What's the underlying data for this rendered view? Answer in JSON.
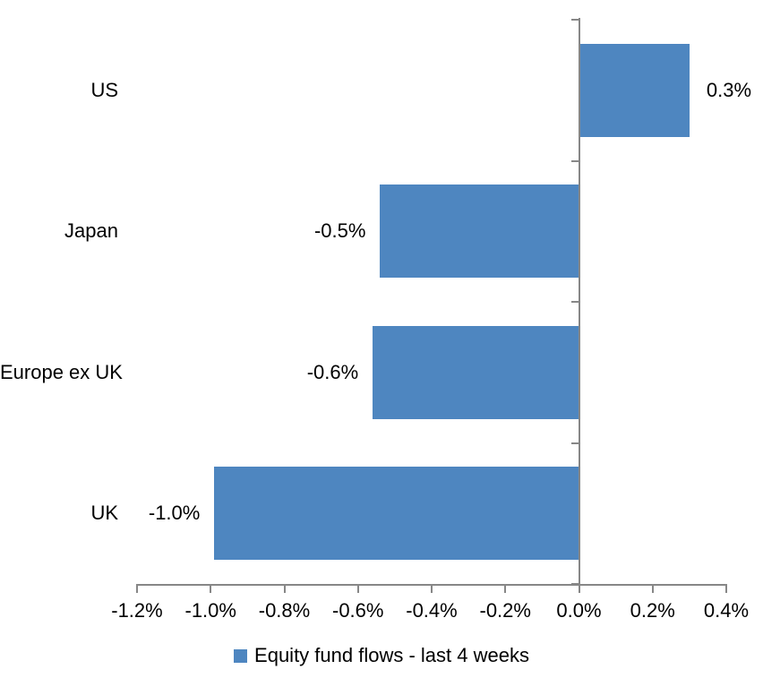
{
  "chart_data": {
    "type": "bar",
    "orientation": "horizontal",
    "title": "",
    "xlabel": "",
    "ylabel": "",
    "categories": [
      "US",
      "Japan",
      "Europe ex UK",
      "UK"
    ],
    "values": [
      0.3,
      -0.54,
      -0.56,
      -0.99
    ],
    "data_labels": [
      "0.3%",
      "-0.5%",
      "-0.6%",
      "-1.0%"
    ],
    "series_name": "Equity fund flows - last 4 weeks",
    "xlim": [
      -1.2,
      0.4
    ],
    "xticks": [
      -1.2,
      -1.0,
      -0.8,
      -0.6,
      -0.4,
      -0.2,
      0.0,
      0.2,
      0.4
    ],
    "xtick_labels": [
      "-1.2%",
      "-1.0%",
      "-0.8%",
      "-0.6%",
      "-0.4%",
      "-0.2%",
      "0.0%",
      "0.2%",
      "0.4%"
    ],
    "grid": false,
    "legend_position": "bottom",
    "colors": {
      "bar": "#4E86C0",
      "axis": "#878787",
      "text": "#000000",
      "background": "#FFFFFF"
    }
  },
  "legend": {
    "label": "Equity fund flows - last 4 weeks"
  }
}
